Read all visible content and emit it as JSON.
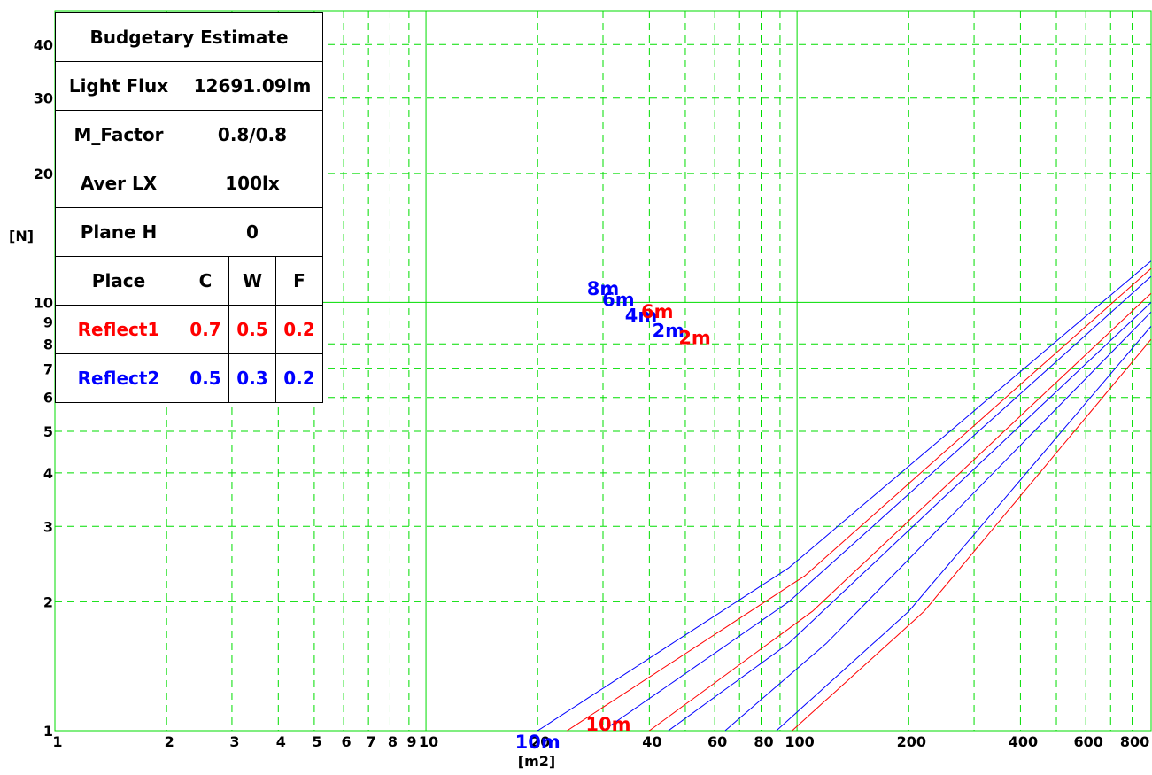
{
  "info_table": {
    "title": "Budgetary Estimate",
    "rows": [
      {
        "label": "Light Flux",
        "value": "12691.09lm"
      },
      {
        "label": "M_Factor",
        "value": "0.8/0.8"
      },
      {
        "label": "Aver LX",
        "value": "100lx"
      },
      {
        "label": "Plane H",
        "value": "0"
      }
    ],
    "place_label": "Place",
    "place_cols": [
      "C",
      "W",
      "F"
    ],
    "reflect1": {
      "label": "Reflect1",
      "values": [
        "0.7",
        "0.5",
        "0.2"
      ],
      "color": "#ff0000"
    },
    "reflect2": {
      "label": "Reflect2",
      "values": [
        "0.5",
        "0.3",
        "0.2"
      ],
      "color": "#0000ff"
    }
  },
  "chart_data": {
    "type": "line",
    "xscale": "log",
    "yscale": "log",
    "xlim": [
      1,
      900
    ],
    "ylim": [
      1,
      48
    ],
    "xlabel": "[m2]",
    "ylabel": "[N]",
    "grid": true,
    "grid_color": "#00dd00",
    "x_ticks": [
      1,
      2,
      3,
      4,
      5,
      6,
      7,
      8,
      9,
      10,
      20,
      40,
      60,
      80,
      100,
      200,
      400,
      600,
      800
    ],
    "x_tick_labels": [
      "1",
      "2",
      "3",
      "4",
      "5",
      "6",
      "7",
      "8",
      "9",
      "10",
      "20",
      "40",
      "60",
      "80",
      "100",
      "200",
      "400",
      "600",
      "800"
    ],
    "y_ticks": [
      1,
      2,
      3,
      4,
      5,
      6,
      7,
      8,
      9,
      10,
      20,
      30,
      40
    ],
    "y_tick_labels": [
      "1",
      "2",
      "3",
      "4",
      "5",
      "6",
      "7",
      "8",
      "9",
      "10",
      "20",
      "30",
      "40"
    ],
    "series": [
      {
        "color": "#0000ff",
        "points": [
          [
            20,
            1
          ],
          [
            95,
            2.4
          ],
          [
            900,
            12.5
          ]
        ]
      },
      {
        "color": "#ff0000",
        "points": [
          [
            24,
            1
          ],
          [
            105,
            2.3
          ],
          [
            900,
            12
          ]
        ]
      },
      {
        "color": "#0000ff",
        "points": [
          [
            30,
            1
          ],
          [
            95,
            2.0
          ],
          [
            900,
            11.5
          ]
        ]
      },
      {
        "color": "#ff0000",
        "points": [
          [
            40,
            1
          ],
          [
            110,
            1.9
          ],
          [
            900,
            10.5
          ]
        ]
      },
      {
        "color": "#0000ff",
        "points": [
          [
            45,
            1
          ],
          [
            95,
            1.6
          ],
          [
            900,
            10.0
          ]
        ]
      },
      {
        "color": "#0000ff",
        "points": [
          [
            64,
            1
          ],
          [
            120,
            1.6
          ],
          [
            900,
            9.5
          ]
        ]
      },
      {
        "color": "#0000ff",
        "points": [
          [
            88,
            1
          ],
          [
            200,
            1.9
          ],
          [
            900,
            8.8
          ]
        ]
      },
      {
        "color": "#ff0000",
        "points": [
          [
            97,
            1
          ],
          [
            220,
            1.9
          ],
          [
            900,
            8.2
          ]
        ]
      }
    ],
    "labels": [
      {
        "text": "8m",
        "color": "#0000ff",
        "x": 30,
        "y": 10.4
      },
      {
        "text": "6m",
        "color": "#0000ff",
        "x": 33,
        "y": 9.8
      },
      {
        "text": "4m",
        "color": "#0000ff",
        "x": 38,
        "y": 9.0
      },
      {
        "text": "6m",
        "color": "#ff0000",
        "x": 42,
        "y": 9.2
      },
      {
        "text": "2m",
        "color": "#0000ff",
        "x": 45,
        "y": 8.3
      },
      {
        "text": "2m",
        "color": "#ff0000",
        "x": 53,
        "y": 8.0
      },
      {
        "text": "10m",
        "color": "#ff0000",
        "x": 31,
        "y": 1.0
      },
      {
        "text": "10m",
        "color": "#0000ff",
        "x": 20,
        "y": 0.91
      }
    ]
  }
}
